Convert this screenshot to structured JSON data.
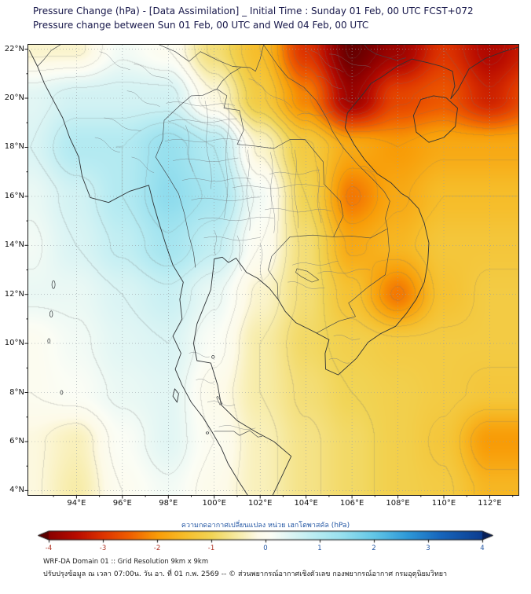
{
  "chart_data": {
    "type": "heatmap",
    "title": "Pressure Change (hPa) - [Data Assimilation] _ Initial Time : Sunday 01 Feb, 00 UTC FCST+072",
    "subtitle": "Pressure change between Sun 01 Feb, 00 UTC and Wed 04 Feb, 00 UTC",
    "units": "hPa",
    "xlabel_ticks": [
      "94°E",
      "96°E",
      "98°E",
      "100°E",
      "102°E",
      "104°E",
      "106°E",
      "108°E",
      "110°E",
      "112°E"
    ],
    "x_tick_values": [
      94,
      96,
      98,
      100,
      102,
      104,
      106,
      108,
      110,
      112
    ],
    "ylabel_ticks": [
      "4°N",
      "6°N",
      "8°N",
      "10°N",
      "12°N",
      "14°N",
      "16°N",
      "18°N",
      "20°N",
      "22°N"
    ],
    "y_tick_values": [
      4,
      6,
      8,
      10,
      12,
      14,
      16,
      18,
      20,
      22
    ],
    "extent": {
      "lon_min": 91.9,
      "lon_max": 113.25,
      "lat_min": 3.82,
      "lat_max": 22.18
    },
    "grid_lons": [
      92,
      94,
      96,
      98,
      100,
      102,
      104,
      106,
      108,
      110,
      112,
      114
    ],
    "grid_lats": [
      22,
      20,
      18,
      16,
      14,
      12,
      10,
      8,
      6,
      4
    ],
    "values": [
      [
        -0.3,
        -0.3,
        0.2,
        0.0,
        -0.8,
        -1.5,
        -3.0,
        -4.3,
        -3.8,
        -3.0,
        -3.6,
        -3.2
      ],
      [
        0.4,
        0.6,
        0.6,
        0.6,
        -0.2,
        -1.2,
        -2.2,
        -3.8,
        -2.8,
        -2.6,
        -3.2,
        -2.6
      ],
      [
        0.5,
        1.0,
        1.0,
        1.4,
        1.0,
        -0.3,
        -1.2,
        -1.8,
        -2.0,
        -1.8,
        -1.8,
        -1.8
      ],
      [
        0.3,
        0.6,
        1.0,
        1.5,
        1.2,
        0.2,
        -1.0,
        -2.3,
        -1.8,
        -1.5,
        -1.5,
        -1.5
      ],
      [
        0.2,
        0.5,
        0.8,
        1.2,
        0.8,
        0.0,
        -0.8,
        -1.8,
        -1.6,
        -1.3,
        -1.3,
        -1.3
      ],
      [
        0.3,
        0.3,
        0.5,
        0.7,
        0.3,
        -0.3,
        -0.8,
        -1.4,
        -2.3,
        -1.4,
        -1.2,
        -1.2
      ],
      [
        0.0,
        0.2,
        0.4,
        0.5,
        0.1,
        -0.5,
        -0.9,
        -1.1,
        -1.2,
        -1.2,
        -1.2,
        -1.2
      ],
      [
        0.0,
        0.1,
        0.3,
        0.4,
        -0.1,
        -0.5,
        -0.8,
        -1.0,
        -1.1,
        -1.2,
        -1.3,
        -1.3
      ],
      [
        -0.2,
        -0.4,
        0.1,
        0.4,
        0.0,
        -0.4,
        -0.7,
        -0.9,
        -1.1,
        -1.3,
        -2.0,
        -2.0
      ],
      [
        -0.2,
        -0.5,
        0.0,
        0.2,
        -0.1,
        -0.4,
        -0.7,
        -0.9,
        -1.1,
        -1.2,
        -1.6,
        -1.6
      ]
    ],
    "contour_interval": 0.25,
    "colormap_stops": [
      [
        -4.4,
        "#5c0000"
      ],
      [
        -4.0,
        "#8a0000"
      ],
      [
        -3.5,
        "#b80b00"
      ],
      [
        -3.0,
        "#dd3300"
      ],
      [
        -2.5,
        "#f06000"
      ],
      [
        -2.0,
        "#f89c07"
      ],
      [
        -1.5,
        "#f6bd2a"
      ],
      [
        -1.0,
        "#f1d455"
      ],
      [
        -0.5,
        "#f7eca9"
      ],
      [
        -0.15,
        "#fdfae8"
      ],
      [
        0.1,
        "#fbfdf5"
      ],
      [
        0.4,
        "#e2f6f4"
      ],
      [
        0.9,
        "#baecf2"
      ],
      [
        1.4,
        "#98e0ee"
      ],
      [
        2.0,
        "#62c6e6"
      ],
      [
        2.6,
        "#2f9ad8"
      ],
      [
        3.2,
        "#1767bd"
      ],
      [
        4.0,
        "#0c3c8f"
      ],
      [
        4.4,
        "#07205a"
      ]
    ],
    "colorbar": {
      "title": "ความกดอากาศเปลี่ยนแปลง หน่วย เฮกโตพาสคัล (hPa)",
      "ticks": [
        "-4",
        "-3",
        "-2",
        "-1",
        "0",
        "1",
        "2",
        "3",
        "4"
      ],
      "tick_values": [
        -4,
        -3,
        -2,
        -1,
        0,
        1,
        2,
        3,
        4
      ],
      "range": [
        -4,
        4
      ],
      "negative_label_color": "#b03324",
      "positive_label_color": "#2457a4"
    },
    "legend_position": "bottom",
    "grid": "dotted"
  },
  "footer": {
    "line1": "WRF-DA Domain 01 :: Grid Resolution 9km x 9km",
    "line2": "ปรับปรุงข้อมูล ณ เวลา 07:00น. วัน อา. ที่ 01 ก.พ. 2569 -- © ส่วนพยากรณ์อากาศเชิงตัวเลข กองพยากรณ์อากาศ กรมอุตุนิยมวิทยา"
  }
}
